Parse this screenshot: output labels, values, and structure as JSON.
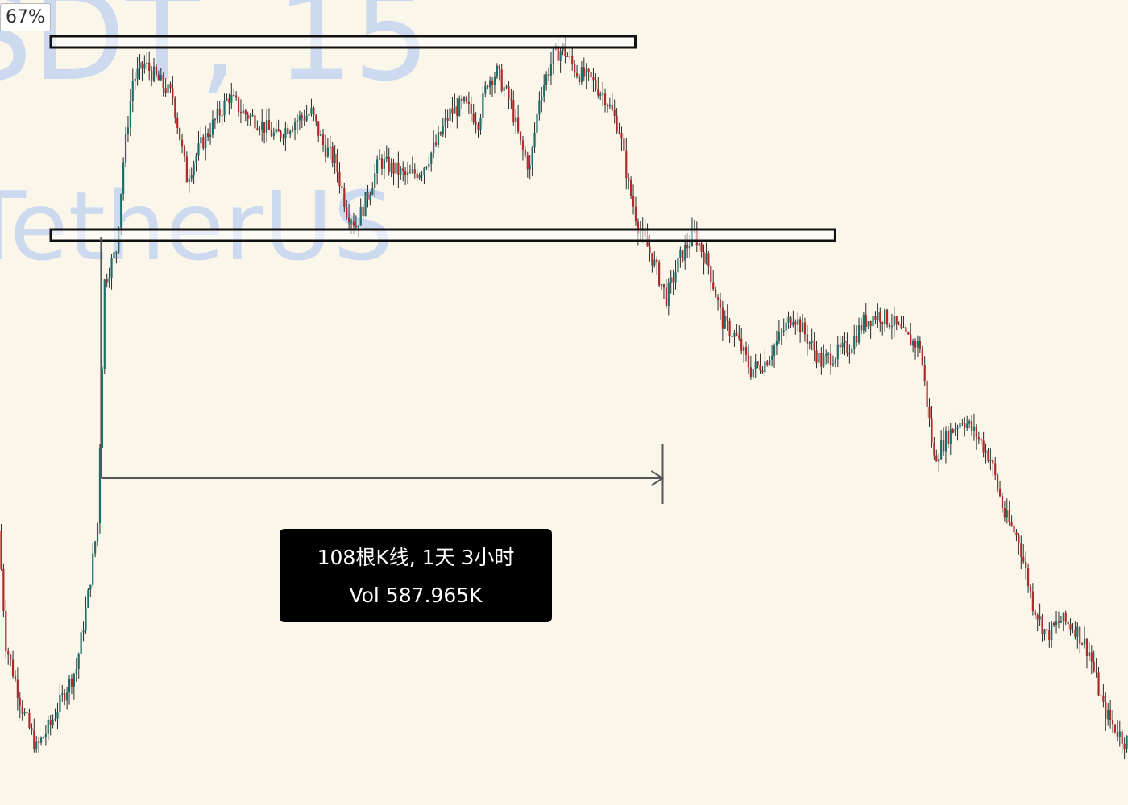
{
  "zoom": "67%",
  "watermark": {
    "symbol_fragment": "SDT, 15",
    "name_fragment": "TetherUS"
  },
  "measurement": {
    "bars_line": "108根K线, 1天 3小时",
    "volume_line": "Vol 587.965K",
    "bar_count": 108
  },
  "colors": {
    "background": "#faf6ea",
    "bull_candle": "#1e6e6a",
    "bear_candle": "#b02a2a",
    "wick": "#2a2a2a",
    "zone_border": "#111111",
    "zone_fill": "#ffffff",
    "measure_line": "#555555",
    "label_bg": "#000000",
    "label_text": "#ffffff",
    "watermark": "#c5d4f1"
  },
  "chart_data": {
    "type": "candlestick",
    "title": "",
    "xlabel": "",
    "ylabel": "",
    "y_range": [
      0,
      100
    ],
    "x_range": [
      0,
      480
    ],
    "price_anchors": [
      [
        0,
        34
      ],
      [
        3,
        20
      ],
      [
        10,
        12
      ],
      [
        16,
        7
      ],
      [
        22,
        10
      ],
      [
        28,
        14
      ],
      [
        33,
        17
      ],
      [
        38,
        26
      ],
      [
        42,
        35
      ],
      [
        45,
        65
      ],
      [
        50,
        69
      ],
      [
        53,
        80
      ],
      [
        57,
        90
      ],
      [
        62,
        92
      ],
      [
        68,
        90
      ],
      [
        74,
        88
      ],
      [
        80,
        78
      ],
      [
        86,
        82
      ],
      [
        92,
        85
      ],
      [
        98,
        88
      ],
      [
        104,
        86
      ],
      [
        110,
        85
      ],
      [
        118,
        83
      ],
      [
        126,
        85
      ],
      [
        133,
        86
      ],
      [
        138,
        82
      ],
      [
        143,
        80
      ],
      [
        148,
        74
      ],
      [
        152,
        72
      ],
      [
        156,
        75
      ],
      [
        162,
        80
      ],
      [
        168,
        79
      ],
      [
        174,
        78
      ],
      [
        180,
        79
      ],
      [
        186,
        82
      ],
      [
        192,
        86
      ],
      [
        198,
        87
      ],
      [
        204,
        85
      ],
      [
        208,
        90
      ],
      [
        212,
        91
      ],
      [
        218,
        87
      ],
      [
        222,
        82
      ],
      [
        226,
        79
      ],
      [
        230,
        88
      ],
      [
        236,
        93
      ],
      [
        240,
        94
      ],
      [
        246,
        91
      ],
      [
        252,
        90
      ],
      [
        258,
        88
      ],
      [
        264,
        84
      ],
      [
        268,
        77
      ],
      [
        272,
        72
      ],
      [
        278,
        68
      ],
      [
        284,
        63
      ],
      [
        290,
        68
      ],
      [
        296,
        71
      ],
      [
        302,
        67
      ],
      [
        308,
        60
      ],
      [
        314,
        58
      ],
      [
        320,
        54
      ],
      [
        326,
        55
      ],
      [
        332,
        58
      ],
      [
        338,
        61
      ],
      [
        344,
        58
      ],
      [
        350,
        55
      ],
      [
        356,
        56
      ],
      [
        362,
        57
      ],
      [
        368,
        60
      ],
      [
        374,
        61
      ],
      [
        380,
        60
      ],
      [
        386,
        58
      ],
      [
        392,
        57
      ],
      [
        398,
        43
      ],
      [
        404,
        46
      ],
      [
        410,
        48
      ],
      [
        416,
        46
      ],
      [
        422,
        43
      ],
      [
        428,
        36
      ],
      [
        434,
        33
      ],
      [
        440,
        25
      ],
      [
        446,
        21
      ],
      [
        452,
        23
      ],
      [
        458,
        22
      ],
      [
        464,
        19
      ],
      [
        470,
        12
      ],
      [
        474,
        10
      ],
      [
        479,
        8
      ]
    ],
    "resistance_zone": {
      "x_start": 0,
      "x_end": 270,
      "y_high": 95.5,
      "y_low": 94.1
    },
    "support_zone": {
      "x_start": 0,
      "x_end": 355,
      "y_high": 71.5,
      "y_low": 70.1
    },
    "measure": {
      "x_start": 43,
      "x_end": 282,
      "y_level": 40.6,
      "start_marker_top": 70.5,
      "end_marker_range": [
        37.4,
        44.8
      ]
    }
  }
}
